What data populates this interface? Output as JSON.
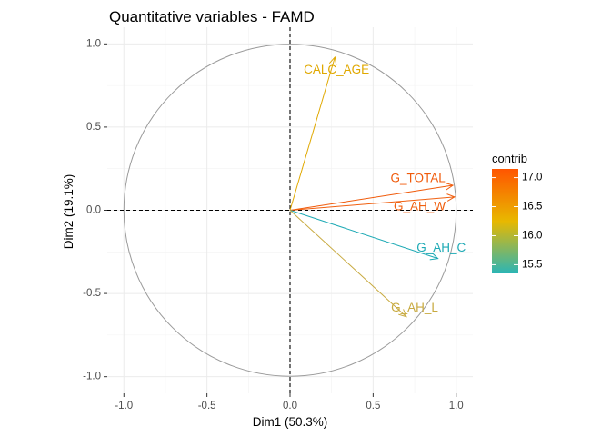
{
  "chart_data": {
    "type": "scatter",
    "subtype": "pca-correlation-circle",
    "title": "Quantitative variables - FAMD",
    "xlabel": "Dim1 (50.3%)",
    "ylabel": "Dim2 (19.1%)",
    "xlim": [
      -1.1,
      1.1
    ],
    "ylim": [
      -1.1,
      1.1
    ],
    "x_ticks": [
      -1.0,
      -0.5,
      0.0,
      0.5,
      1.0
    ],
    "y_ticks": [
      -1.0,
      -0.5,
      0.0,
      0.5,
      1.0
    ],
    "x_tick_labels": [
      "-1.0",
      "-0.5",
      "0.0",
      "0.5",
      "1.0"
    ],
    "y_tick_labels": [
      "-1.0",
      "-0.5",
      "0.0",
      "0.5",
      "1.0"
    ],
    "grid": true,
    "unit_circle": true,
    "variables": [
      {
        "name": "CALC_AGE",
        "x": 0.27,
        "y": 0.92,
        "contrib": 16.4,
        "color": "#E0A800",
        "label_x": 0.28,
        "label_y": 0.84
      },
      {
        "name": "G_TOTAL",
        "x": 0.98,
        "y": 0.15,
        "contrib": 17.1,
        "color": "#F05A0A",
        "label_x": 0.77,
        "label_y": 0.19
      },
      {
        "name": "G_AH_W",
        "x": 0.99,
        "y": 0.08,
        "contrib": 17.05,
        "color": "#F06010",
        "label_x": 0.78,
        "label_y": 0.02
      },
      {
        "name": "G_AH_C",
        "x": 0.89,
        "y": -0.29,
        "contrib": 15.4,
        "color": "#1EAAB5",
        "label_x": 0.91,
        "label_y": -0.23
      },
      {
        "name": "G_AH_L",
        "x": 0.7,
        "y": -0.64,
        "contrib": 16.1,
        "color": "#C8AA40",
        "label_x": 0.75,
        "label_y": -0.59
      }
    ],
    "legend": {
      "title": "contrib",
      "position": "right",
      "ticks": [
        17.0,
        16.5,
        16.0,
        15.5
      ],
      "tick_labels": [
        "17.0",
        "16.5",
        "16.0",
        "15.5"
      ],
      "range": [
        15.35,
        17.15
      ],
      "gradient_colors": [
        "#2BB5B5",
        "#E8B800",
        "#FF5500"
      ]
    }
  }
}
